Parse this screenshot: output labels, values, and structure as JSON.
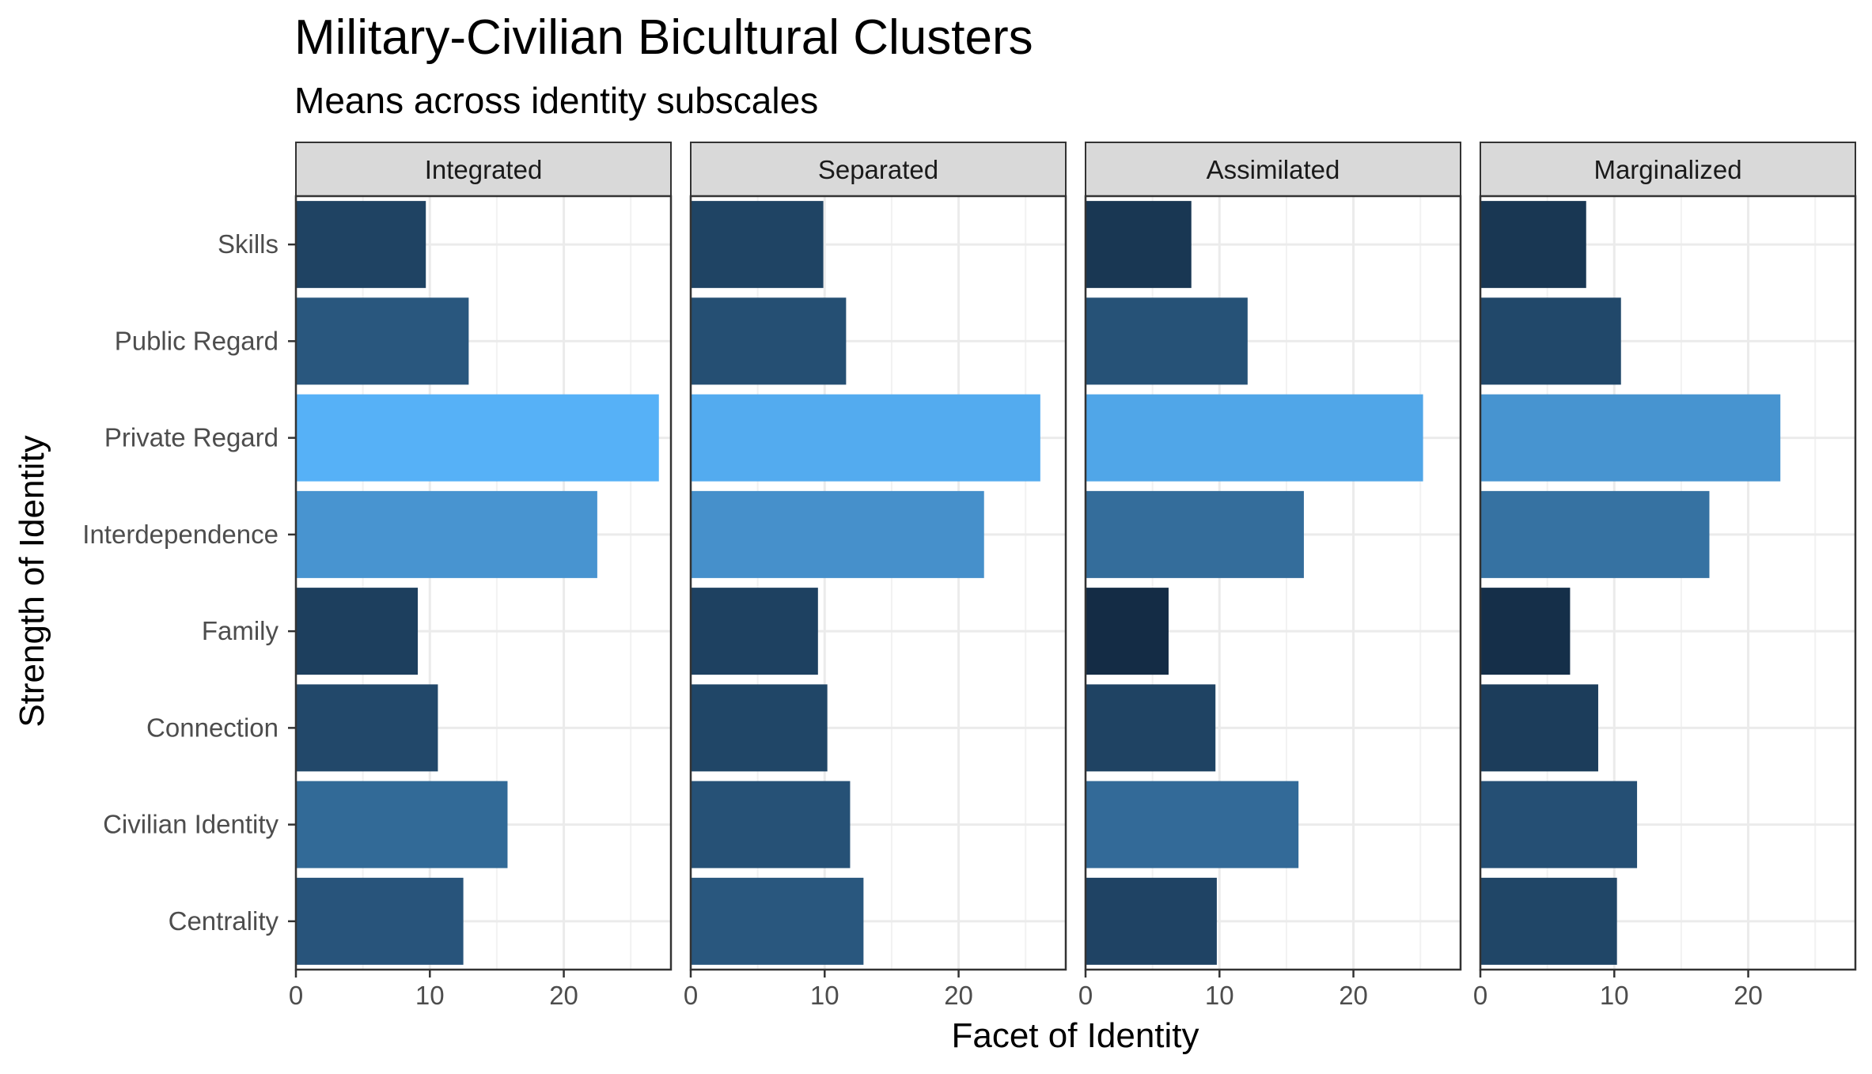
{
  "chart_data": {
    "type": "bar",
    "orientation": "horizontal",
    "title": "Military-Civilian Bicultural Clusters",
    "subtitle": "Means across identity subscales",
    "xlabel": "Facet of Identity",
    "ylabel": "Strength of Identity",
    "xlim": [
      0,
      28
    ],
    "x_ticks": [
      0,
      10,
      20
    ],
    "grid": true,
    "legend": "none",
    "categories": [
      "Skills",
      "Public Regard",
      "Private Regard",
      "Interdependence",
      "Family",
      "Connection",
      "Civilian Identity",
      "Centrality"
    ],
    "color_scale": {
      "low": "#132b43",
      "high": "#56b1f7",
      "min": 6,
      "max": 27
    },
    "series": [
      {
        "name": "Integrated",
        "values": [
          9.7,
          12.9,
          27.1,
          22.5,
          9.1,
          10.6,
          15.8,
          12.5
        ]
      },
      {
        "name": "Separated",
        "values": [
          9.9,
          11.6,
          26.1,
          21.9,
          9.5,
          10.2,
          11.9,
          12.9
        ]
      },
      {
        "name": "Assimilated",
        "values": [
          7.9,
          12.1,
          25.2,
          16.3,
          6.2,
          9.7,
          15.9,
          9.8
        ]
      },
      {
        "name": "Marginalized",
        "values": [
          7.9,
          10.5,
          22.4,
          17.1,
          6.7,
          8.8,
          11.7,
          10.2
        ]
      }
    ]
  }
}
